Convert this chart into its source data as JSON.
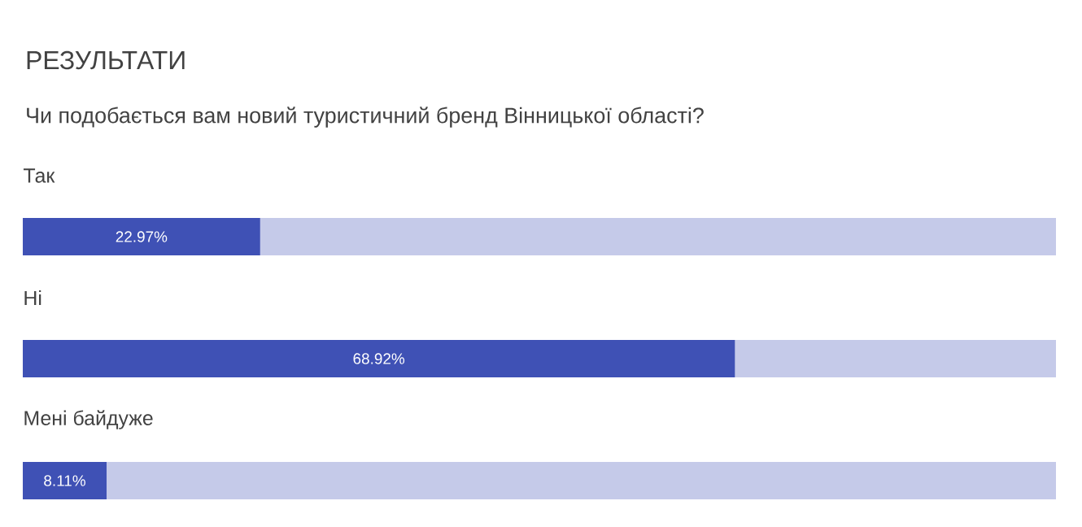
{
  "chart_data": {
    "type": "bar",
    "orientation": "horizontal",
    "title": "РЕЗУЛЬТАТИ",
    "subtitle": "Чи подобається вам новий туристичний бренд Вінницької області?",
    "categories": [
      "Так",
      "Ні",
      "Мені байдуже"
    ],
    "values": [
      22.97,
      68.92,
      8.11
    ],
    "value_labels": [
      "22.97%",
      "68.92%",
      "8.11%"
    ],
    "color": "#3f51b5",
    "xlim": [
      0,
      100
    ],
    "tick_labels": false
  }
}
